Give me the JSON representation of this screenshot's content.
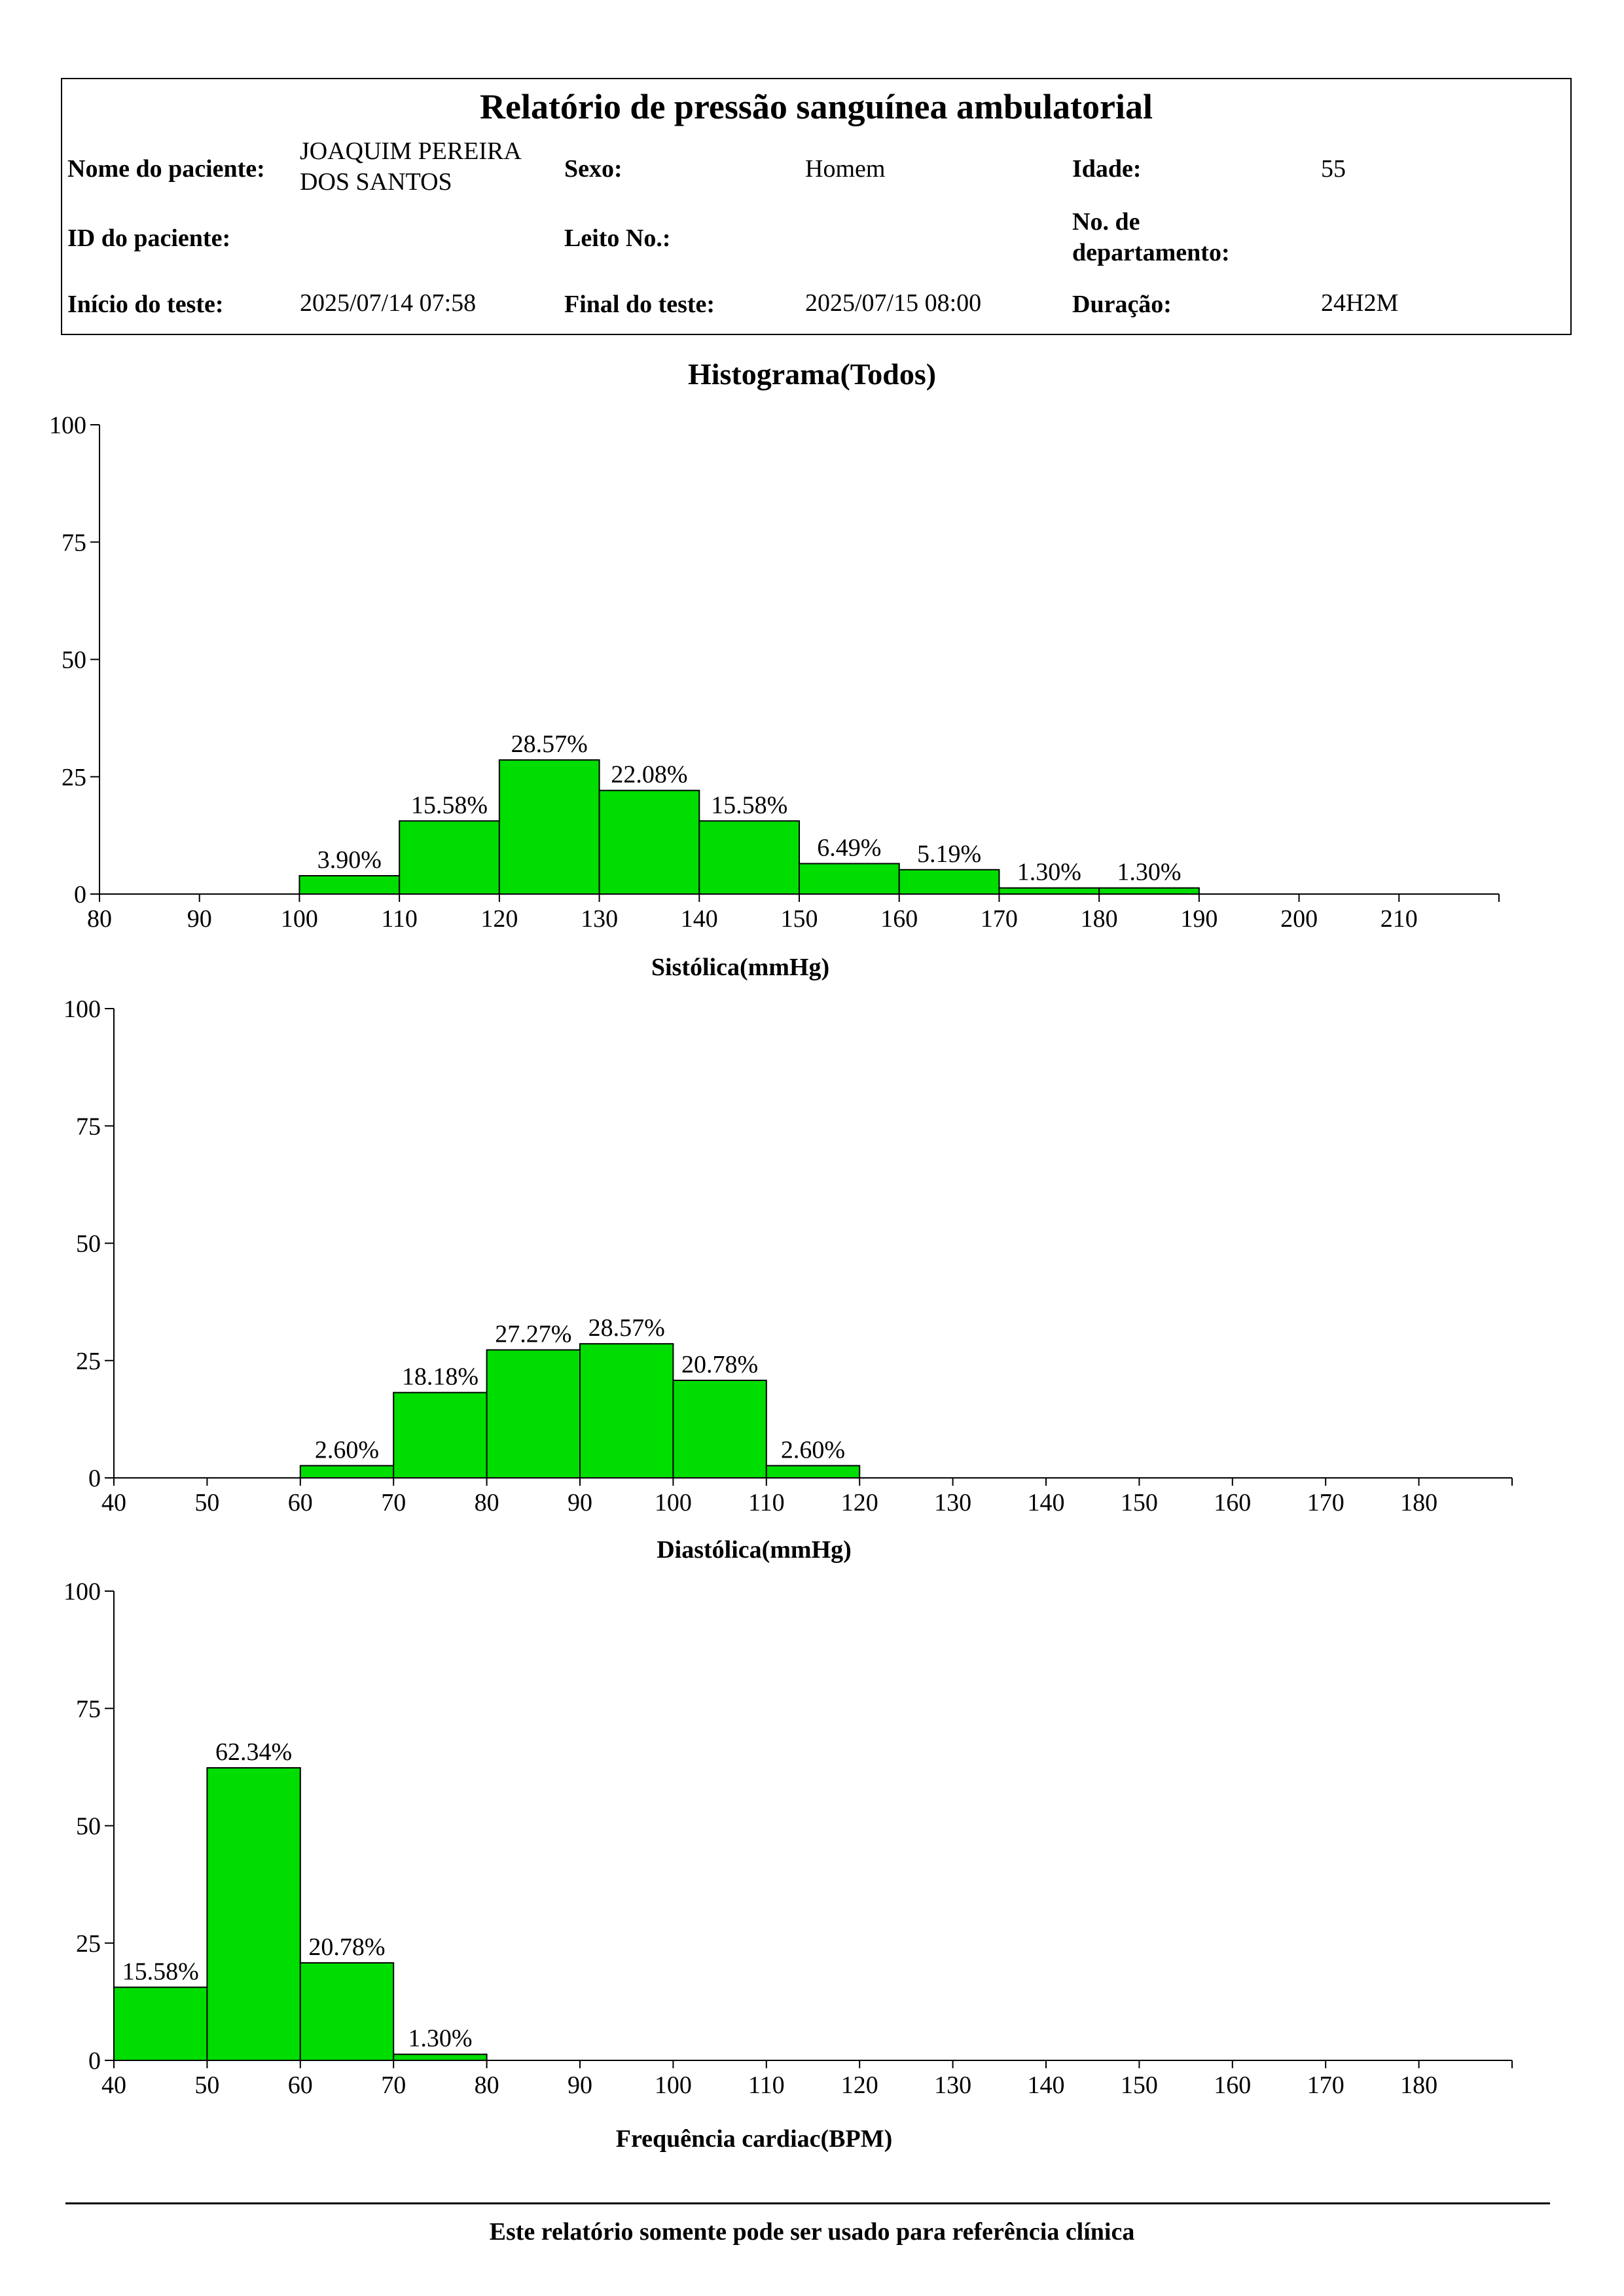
{
  "header": {
    "title": "Relatório de pressão sanguínea ambulatorial",
    "patient_name_label": "Nome do paciente:",
    "patient_name_line1": "JOAQUIM PEREIRA",
    "patient_name_line2": "DOS SANTOS",
    "sex_label": "Sexo:",
    "sex_value": "Homem",
    "age_label": "Idade:",
    "age_value": "55",
    "patient_id_label": "ID do paciente:",
    "patient_id_value": "",
    "bed_label": "Leito No.:",
    "bed_value": "",
    "dept_label_line1": "No. de",
    "dept_label_line2": "departamento:",
    "dept_value": "",
    "start_label": "Início do teste:",
    "start_value": "2025/07/14 07:58",
    "end_label": "Final do teste:",
    "end_value": "2025/07/15 08:00",
    "duration_label": "Duração:",
    "duration_value": "24H2M"
  },
  "section_title": "Histograma(Todos)",
  "chart_data": [
    {
      "type": "bar",
      "title": "",
      "xlabel": "Sistólica(mmHg)",
      "ylabel": "",
      "bin_width": 10,
      "xlim": [
        80,
        220
      ],
      "xticks": [
        80,
        90,
        100,
        110,
        120,
        130,
        140,
        150,
        160,
        170,
        180,
        190,
        200,
        210
      ],
      "ylim": [
        0,
        100
      ],
      "yticks": [
        0,
        25,
        50,
        75,
        100
      ],
      "bins": [
        100,
        110,
        120,
        130,
        140,
        150,
        160,
        170,
        180
      ],
      "values": [
        3.9,
        15.58,
        28.57,
        22.08,
        15.58,
        6.49,
        5.19,
        1.3,
        1.3
      ],
      "labels": [
        "3.90%",
        "15.58%",
        "28.57%",
        "22.08%",
        "15.58%",
        "6.49%",
        "5.19%",
        "1.30%",
        "1.30%"
      ],
      "color": "#00dd00"
    },
    {
      "type": "bar",
      "title": "",
      "xlabel": "Diastólica(mmHg)",
      "ylabel": "",
      "bin_width": 10,
      "xlim": [
        40,
        190
      ],
      "xticks": [
        40,
        50,
        60,
        70,
        80,
        90,
        100,
        110,
        120,
        130,
        140,
        150,
        160,
        170,
        180
      ],
      "ylim": [
        0,
        100
      ],
      "yticks": [
        0,
        25,
        50,
        75,
        100
      ],
      "bins": [
        60,
        70,
        80,
        90,
        100,
        110
      ],
      "values": [
        2.6,
        18.18,
        27.27,
        28.57,
        20.78,
        2.6
      ],
      "labels": [
        "2.60%",
        "18.18%",
        "27.27%",
        "28.57%",
        "20.78%",
        "2.60%"
      ],
      "color": "#00dd00"
    },
    {
      "type": "bar",
      "title": "",
      "xlabel": "Frequência cardiac(BPM)",
      "ylabel": "",
      "bin_width": 10,
      "xlim": [
        40,
        190
      ],
      "xticks": [
        40,
        50,
        60,
        70,
        80,
        90,
        100,
        110,
        120,
        130,
        140,
        150,
        160,
        170,
        180
      ],
      "ylim": [
        0,
        100
      ],
      "yticks": [
        0,
        25,
        50,
        75,
        100
      ],
      "bins": [
        40,
        50,
        60,
        70
      ],
      "values": [
        15.58,
        62.34,
        20.78,
        1.3
      ],
      "labels": [
        "15.58%",
        "62.34%",
        "20.78%",
        "1.30%"
      ],
      "color": "#00dd00"
    }
  ],
  "footer": "Este relatório somente pode ser usado para referência clínica"
}
